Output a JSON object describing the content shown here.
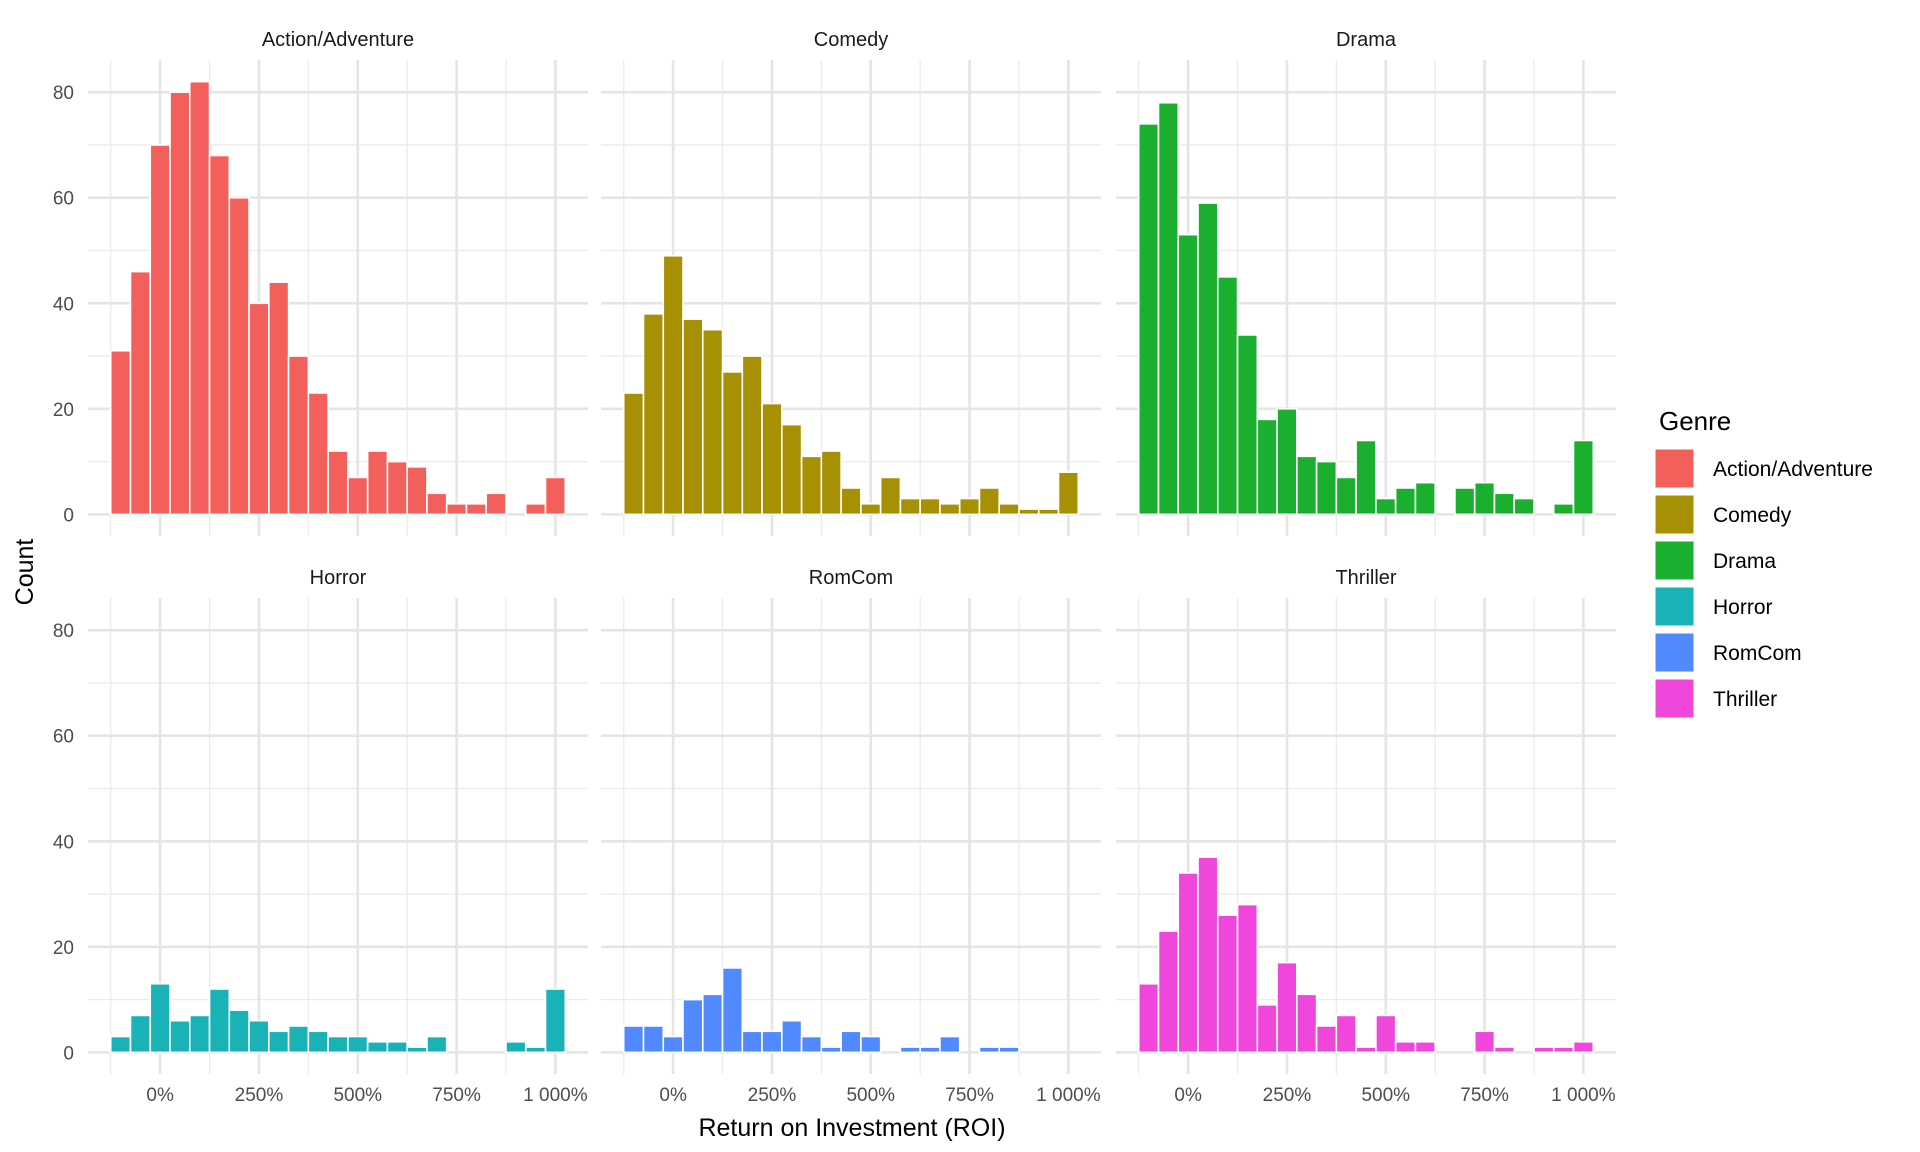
{
  "chart_data": {
    "type": "bar",
    "subtype": "faceted-histogram",
    "xlabel": "Return on Investment (ROI)",
    "ylabel": "Count",
    "x_bin_centers": [
      -100,
      -50,
      0,
      50,
      100,
      150,
      200,
      250,
      300,
      350,
      400,
      450,
      500,
      550,
      600,
      650,
      700,
      750,
      800,
      850,
      900,
      950,
      1000
    ],
    "x_bin_width": 50,
    "xlim": [
      -182.5,
      1082.5
    ],
    "ylim": [
      -4.1,
      86.1
    ],
    "x_ticks": [
      0,
      250,
      500,
      750,
      1000
    ],
    "x_tick_labels": [
      "0%",
      "250%",
      "500%",
      "750%",
      "1 000%"
    ],
    "y_ticks": [
      0,
      20,
      40,
      60,
      80
    ],
    "y_tick_labels": [
      "0",
      "20",
      "40",
      "60",
      "80"
    ],
    "grid": true,
    "legend": {
      "title": "Genre",
      "position": "right"
    },
    "facets": [
      {
        "name": "Action/Adventure",
        "color": "#F35F5B",
        "values": [
          31,
          46,
          70,
          80,
          82,
          68,
          60,
          40,
          44,
          30,
          23,
          12,
          7,
          12,
          10,
          9,
          4,
          2,
          2,
          4,
          0,
          2,
          7
        ]
      },
      {
        "name": "Comedy",
        "color": "#A89005",
        "values": [
          23,
          38,
          49,
          37,
          35,
          27,
          30,
          21,
          17,
          11,
          12,
          5,
          2,
          7,
          3,
          3,
          2,
          3,
          5,
          2,
          1,
          1,
          8
        ]
      },
      {
        "name": "Drama",
        "color": "#1AAF2F",
        "values": [
          74,
          78,
          53,
          59,
          45,
          34,
          18,
          20,
          11,
          10,
          7,
          14,
          3,
          5,
          6,
          0,
          5,
          6,
          4,
          3,
          0,
          2,
          14
        ]
      },
      {
        "name": "Horror",
        "color": "#19B3B7",
        "values": [
          3,
          7,
          13,
          6,
          7,
          12,
          8,
          6,
          4,
          5,
          4,
          3,
          3,
          2,
          2,
          1,
          3,
          0,
          0,
          0,
          2,
          1,
          12
        ]
      },
      {
        "name": "RomCom",
        "color": "#518AFF",
        "values": [
          5,
          5,
          3,
          10,
          11,
          16,
          4,
          4,
          6,
          3,
          1,
          4,
          3,
          0,
          1,
          1,
          3,
          0,
          1,
          1,
          0,
          0,
          0
        ]
      },
      {
        "name": "Thriller",
        "color": "#F046DC",
        "values": [
          13,
          23,
          34,
          37,
          26,
          28,
          9,
          17,
          11,
          5,
          7,
          1,
          7,
          2,
          2,
          0,
          0,
          4,
          1,
          0,
          1,
          1,
          2
        ]
      }
    ]
  }
}
